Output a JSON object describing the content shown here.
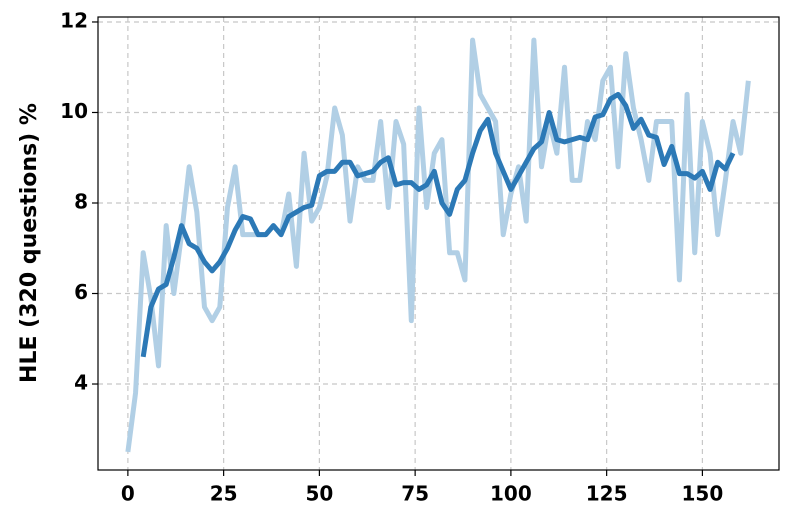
{
  "chart_data": {
    "type": "line",
    "y_label": "HLE (320 questions) %",
    "xlim": [
      -7.8,
      170
    ],
    "ylim": [
      2.1,
      12.11
    ],
    "xticks": [
      0,
      25,
      50,
      75,
      100,
      125,
      150
    ],
    "yticks": [
      4,
      6,
      8,
      10,
      12
    ],
    "grid": true,
    "series": [
      {
        "color": "#b1cfe5",
        "x": [
          0,
          2,
          4,
          6,
          8,
          10,
          12,
          14,
          16,
          18,
          20,
          22,
          24,
          26,
          28,
          30,
          32,
          34,
          36,
          38,
          40,
          42,
          44,
          46,
          48,
          50,
          52,
          54,
          56,
          58,
          60,
          62,
          64,
          66,
          68,
          70,
          72,
          74,
          76,
          78,
          80,
          82,
          84,
          86,
          88,
          90,
          92,
          94,
          96,
          98,
          100,
          102,
          104,
          106,
          108,
          110,
          112,
          114,
          116,
          118,
          120,
          122,
          124,
          126,
          128,
          130,
          132,
          134,
          136,
          138,
          140,
          142,
          144,
          146,
          148,
          150,
          152,
          154,
          156,
          158,
          160,
          162
        ],
        "values": [
          2.5,
          3.8,
          6.9,
          5.9,
          4.4,
          7.5,
          6.0,
          7.3,
          8.8,
          7.8,
          5.7,
          5.4,
          5.7,
          7.9,
          8.8,
          7.3,
          7.3,
          7.3,
          7.3,
          7.5,
          7.3,
          8.2,
          6.6,
          9.1,
          7.6,
          7.9,
          8.6,
          10.1,
          9.5,
          7.6,
          8.8,
          8.5,
          8.5,
          9.8,
          7.9,
          9.8,
          9.3,
          5.4,
          10.1,
          7.9,
          9.1,
          9.4,
          6.9,
          6.9,
          6.3,
          11.6,
          10.4,
          10.1,
          9.8,
          7.3,
          8.2,
          8.8,
          7.6,
          11.6,
          8.8,
          9.8,
          9.1,
          11.0,
          8.5,
          8.5,
          9.8,
          9.4,
          10.7,
          11.0,
          8.8,
          11.3,
          10.1,
          9.4,
          8.5,
          9.8,
          9.8,
          9.8,
          6.3,
          10.4,
          6.9,
          9.8,
          9.1,
          7.3,
          8.5,
          9.8,
          9.1,
          10.7
        ]
      },
      {
        "color": "#2c79b6",
        "x": [
          4,
          6,
          8,
          10,
          12,
          14,
          16,
          18,
          20,
          22,
          24,
          26,
          28,
          30,
          32,
          34,
          36,
          38,
          40,
          42,
          44,
          46,
          48,
          50,
          52,
          54,
          56,
          58,
          60,
          62,
          64,
          66,
          68,
          70,
          72,
          74,
          76,
          78,
          80,
          82,
          84,
          86,
          88,
          90,
          92,
          94,
          96,
          98,
          100,
          102,
          104,
          106,
          108,
          110,
          112,
          114,
          116,
          118,
          120,
          122,
          124,
          126,
          128,
          130,
          132,
          134,
          136,
          138,
          140,
          142,
          144,
          146,
          148,
          150,
          152,
          154,
          156,
          158
        ],
        "values": [
          4.6,
          5.7,
          6.1,
          6.2,
          6.8,
          7.5,
          7.1,
          7.0,
          6.7,
          6.5,
          6.7,
          7.0,
          7.4,
          7.7,
          7.65,
          7.3,
          7.3,
          7.5,
          7.3,
          7.7,
          7.8,
          7.9,
          7.95,
          8.6,
          8.7,
          8.7,
          8.9,
          8.9,
          8.6,
          8.65,
          8.7,
          8.9,
          9.0,
          8.4,
          8.45,
          8.45,
          8.3,
          8.4,
          8.7,
          8.0,
          7.75,
          8.3,
          8.5,
          9.1,
          9.6,
          9.85,
          9.1,
          8.7,
          8.3,
          8.6,
          8.9,
          9.2,
          9.35,
          10.0,
          9.4,
          9.35,
          9.4,
          9.45,
          9.4,
          9.9,
          9.95,
          10.3,
          10.4,
          10.15,
          9.65,
          9.85,
          9.5,
          9.45,
          8.85,
          9.25,
          8.65,
          8.65,
          8.55,
          8.7,
          8.3,
          8.9,
          8.75,
          9.1
        ]
      }
    ]
  }
}
